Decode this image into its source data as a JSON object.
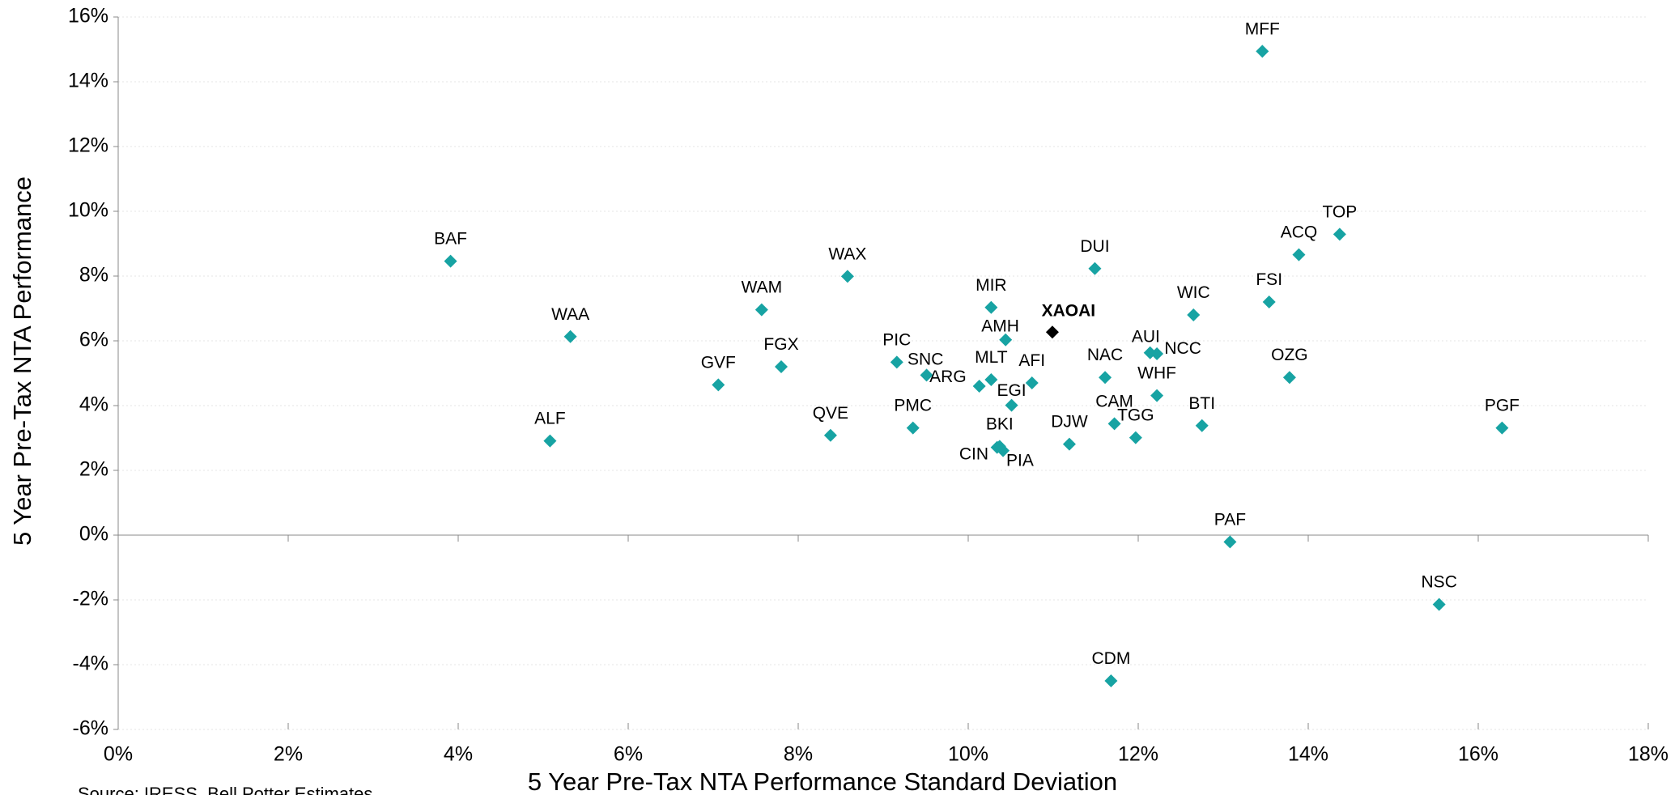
{
  "chart_data": {
    "type": "scatter",
    "x_label": "5 Year Pre-Tax NTA Performance Standard Deviation",
    "y_label": "5 Year Pre-Tax NTA Performance",
    "source": "Source: IRESS, Bell Potter Estimates",
    "color": "#17a3a3",
    "xlim": [
      0,
      18
    ],
    "ylim": [
      -6,
      16
    ],
    "xticks": [
      {
        "value": 0,
        "label": "0%"
      },
      {
        "value": 2,
        "label": "2%"
      },
      {
        "value": 4,
        "label": "4%"
      },
      {
        "value": 6,
        "label": "6%"
      },
      {
        "value": 8,
        "label": "8%"
      },
      {
        "value": 10,
        "label": "10%"
      },
      {
        "value": 12,
        "label": "12%"
      },
      {
        "value": 14,
        "label": "14%"
      },
      {
        "value": 16,
        "label": "16%"
      },
      {
        "value": 18,
        "label": "18%"
      }
    ],
    "yticks": [
      {
        "value": -6,
        "label": "-6%"
      },
      {
        "value": -4,
        "label": "-4%"
      },
      {
        "value": -2,
        "label": "-2%"
      },
      {
        "value": 0,
        "label": "0%"
      },
      {
        "value": 2,
        "label": "2%"
      },
      {
        "value": 4,
        "label": "4%"
      },
      {
        "value": 6,
        "label": "6%"
      },
      {
        "value": 8,
        "label": "8%"
      },
      {
        "value": 10,
        "label": "10%"
      },
      {
        "value": 12,
        "label": "12%"
      },
      {
        "value": 14,
        "label": "14%"
      },
      {
        "value": 16,
        "label": "16%"
      }
    ],
    "grid": true,
    "points": [
      {
        "label": "BAF",
        "x": 3.91,
        "y": 8.46
      },
      {
        "label": "WAA",
        "x": 5.32,
        "y": 6.13
      },
      {
        "label": "ALF",
        "x": 5.08,
        "y": 2.91
      },
      {
        "label": "GVF",
        "x": 7.06,
        "y": 4.64
      },
      {
        "label": "WAM",
        "x": 7.57,
        "y": 6.96
      },
      {
        "label": "FGX",
        "x": 7.8,
        "y": 5.2
      },
      {
        "label": "WAX",
        "x": 8.58,
        "y": 7.99
      },
      {
        "label": "QVE",
        "x": 8.38,
        "y": 3.08
      },
      {
        "label": "PIC",
        "x": 9.16,
        "y": 5.34
      },
      {
        "label": "SNC",
        "x": 9.51,
        "y": 4.94
      },
      {
        "label": "PMC",
        "x": 9.35,
        "y": 3.31
      },
      {
        "label": "MIR",
        "x": 10.27,
        "y": 7.03
      },
      {
        "label": "AMH",
        "x": 10.44,
        "y": 6.03
      },
      {
        "label": "MLT",
        "x": 10.27,
        "y": 4.8
      },
      {
        "label": "ARG",
        "x": 10.13,
        "y": 4.6
      },
      {
        "label": "AFI",
        "x": 10.75,
        "y": 4.7
      },
      {
        "label": "EGI",
        "x": 10.51,
        "y": 4.01
      },
      {
        "label": "BKI",
        "x": 10.37,
        "y": 2.74
      },
      {
        "label": "CIN",
        "x": 10.34,
        "y": 2.71
      },
      {
        "label": "PIA",
        "x": 10.41,
        "y": 2.61
      },
      {
        "label": "XAOAI",
        "x": 10.99,
        "y": 6.27,
        "color": "#000000",
        "bold": true
      },
      {
        "label": "DUI",
        "x": 11.49,
        "y": 8.23
      },
      {
        "label": "DJW",
        "x": 11.19,
        "y": 2.81
      },
      {
        "label": "NAC",
        "x": 11.61,
        "y": 4.87
      },
      {
        "label": "CAM",
        "x": 11.72,
        "y": 3.44
      },
      {
        "label": "TGG",
        "x": 11.97,
        "y": 3.01
      },
      {
        "label": "AUI",
        "x": 12.14,
        "y": 5.63
      },
      {
        "label": "NCC",
        "x": 12.22,
        "y": 5.6
      },
      {
        "label": "WHF",
        "x": 12.22,
        "y": 4.31
      },
      {
        "label": "WIC",
        "x": 12.65,
        "y": 6.8
      },
      {
        "label": "BTI",
        "x": 12.75,
        "y": 3.38
      },
      {
        "label": "MFF",
        "x": 13.46,
        "y": 14.94
      },
      {
        "label": "FSI",
        "x": 13.54,
        "y": 7.2
      },
      {
        "label": "ACQ",
        "x": 13.89,
        "y": 8.66
      },
      {
        "label": "OZG",
        "x": 13.78,
        "y": 4.87
      },
      {
        "label": "TOP",
        "x": 14.37,
        "y": 9.29
      },
      {
        "label": "PAF",
        "x": 13.08,
        "y": -0.21
      },
      {
        "label": "CDM",
        "x": 11.68,
        "y": -4.5
      },
      {
        "label": "NSC",
        "x": 15.54,
        "y": -2.14
      },
      {
        "label": "PGF",
        "x": 16.28,
        "y": 3.31
      }
    ]
  }
}
